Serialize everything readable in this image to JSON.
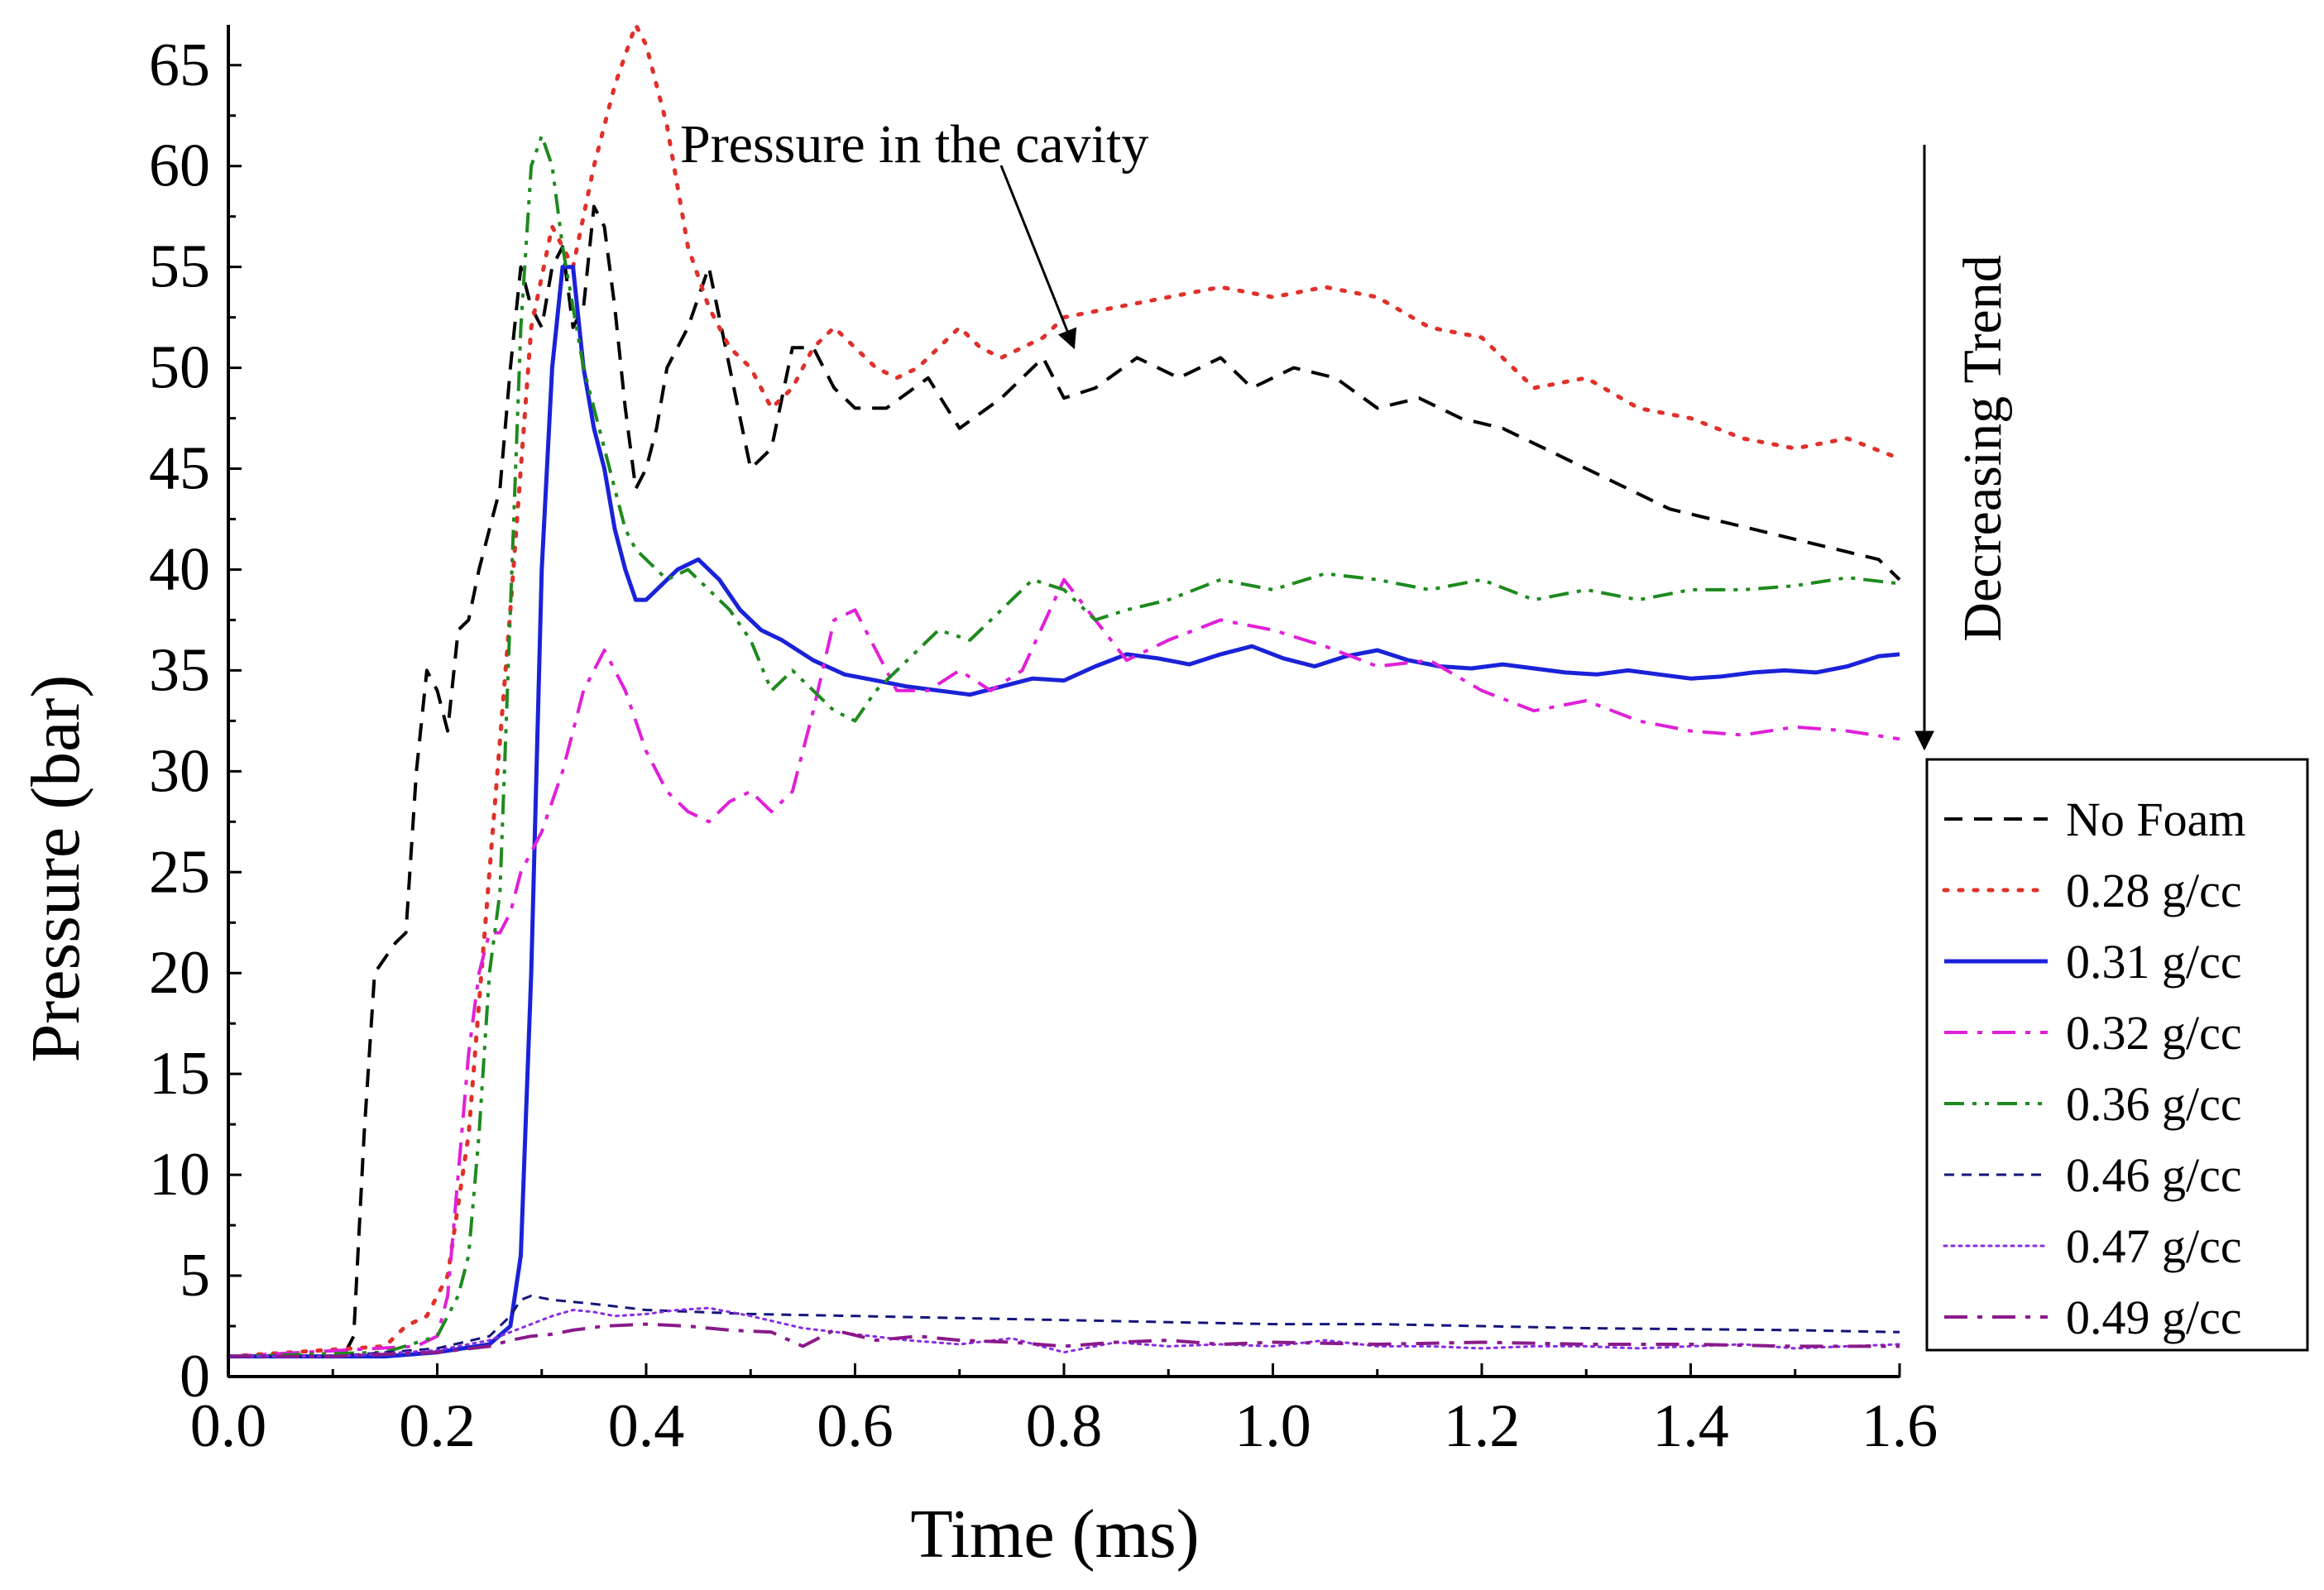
{
  "chart_data": {
    "type": "line",
    "title": "",
    "xlabel": "Time (ms)",
    "ylabel": "Pressure (bar)",
    "xlim": [
      0.0,
      1.6
    ],
    "ylim": [
      0,
      67
    ],
    "x_ticks": [
      "0.0",
      "0.2",
      "0.4",
      "0.6",
      "0.8",
      "1.0",
      "1.2",
      "1.4",
      "1.6"
    ],
    "x_tick_values": [
      0.0,
      0.2,
      0.4,
      0.6,
      0.8,
      1.0,
      1.2,
      1.4,
      1.6
    ],
    "y_ticks": [
      "0",
      "5",
      "10",
      "15",
      "20",
      "25",
      "30",
      "35",
      "40",
      "45",
      "50",
      "55",
      "60",
      "65"
    ],
    "y_tick_values": [
      0,
      5,
      10,
      15,
      20,
      25,
      30,
      35,
      40,
      45,
      50,
      55,
      60,
      65
    ],
    "grid": false,
    "legend_position": "right",
    "annotations": {
      "cavity_label": "Pressure in the cavity",
      "trend_label": "Decreasing Trend"
    },
    "series": [
      {
        "name": "No Foam",
        "color": "#000000",
        "style": "dash",
        "x": [
          0,
          0.11,
          0.12,
          0.13,
          0.14,
          0.16,
          0.17,
          0.18,
          0.19,
          0.2,
          0.21,
          0.22,
          0.23,
          0.24,
          0.25,
          0.26,
          0.27,
          0.28,
          0.29,
          0.3,
          0.31,
          0.32,
          0.33,
          0.34,
          0.35,
          0.36,
          0.37,
          0.38,
          0.39,
          0.4,
          0.41,
          0.42,
          0.44,
          0.46,
          0.48,
          0.5,
          0.52,
          0.54,
          0.56,
          0.58,
          0.6,
          0.63,
          0.67,
          0.7,
          0.74,
          0.78,
          0.8,
          0.83,
          0.87,
          0.91,
          0.95,
          0.98,
          1.02,
          1.06,
          1.1,
          1.14,
          1.18,
          1.22,
          1.26,
          1.3,
          1.34,
          1.38,
          1.42,
          1.46,
          1.5,
          1.54,
          1.58,
          1.6
        ],
        "y": [
          1,
          1,
          2,
          12,
          20,
          21.5,
          22,
          30,
          35,
          34,
          32,
          37,
          37.5,
          40,
          42,
          44,
          50,
          55,
          53,
          52,
          55,
          56,
          52,
          53,
          58,
          57,
          53,
          48,
          44,
          45,
          47,
          50,
          52,
          55,
          50,
          45,
          46,
          51,
          51,
          49,
          48,
          48,
          49.5,
          47,
          48.5,
          50.5,
          48.5,
          49,
          50.5,
          49.5,
          50.5,
          49,
          50,
          49.5,
          48,
          48.5,
          47.5,
          47,
          46,
          45,
          44,
          43,
          42.5,
          42,
          41.5,
          41,
          40.5,
          39.5
        ]
      },
      {
        "name": "0.28 g/cc",
        "color": "#e0302a",
        "style": "dot",
        "x": [
          0,
          0.15,
          0.17,
          0.19,
          0.21,
          0.23,
          0.25,
          0.27,
          0.29,
          0.31,
          0.33,
          0.35,
          0.37,
          0.39,
          0.4,
          0.42,
          0.44,
          0.46,
          0.48,
          0.5,
          0.52,
          0.54,
          0.56,
          0.58,
          0.6,
          0.62,
          0.64,
          0.66,
          0.68,
          0.7,
          0.72,
          0.74,
          0.76,
          0.78,
          0.8,
          0.85,
          0.9,
          0.95,
          1.0,
          1.05,
          1.1,
          1.15,
          1.2,
          1.25,
          1.3,
          1.35,
          1.4,
          1.45,
          1.5,
          1.55,
          1.6
        ],
        "y": [
          1,
          1.5,
          2.5,
          3,
          5,
          12,
          25,
          38,
          52,
          57,
          55,
          60,
          64,
          67,
          66,
          62,
          56,
          53,
          51,
          50,
          48,
          49,
          51,
          52,
          51,
          50,
          49.5,
          50,
          51,
          52,
          51,
          50.5,
          51,
          51.5,
          52.5,
          53,
          53.5,
          54,
          53.5,
          54,
          53.5,
          52,
          51.5,
          49,
          49.5,
          48,
          47.5,
          46.5,
          46,
          46.5,
          45.5
        ]
      },
      {
        "name": "0.31 g/cc",
        "color": "#1a22d8",
        "style": "solid",
        "x": [
          0,
          0.15,
          0.2,
          0.25,
          0.27,
          0.28,
          0.29,
          0.3,
          0.31,
          0.32,
          0.33,
          0.34,
          0.35,
          0.36,
          0.37,
          0.38,
          0.39,
          0.4,
          0.41,
          0.43,
          0.45,
          0.47,
          0.49,
          0.51,
          0.53,
          0.56,
          0.59,
          0.62,
          0.65,
          0.68,
          0.71,
          0.74,
          0.77,
          0.8,
          0.83,
          0.86,
          0.89,
          0.92,
          0.95,
          0.98,
          1.01,
          1.04,
          1.07,
          1.1,
          1.13,
          1.16,
          1.19,
          1.22,
          1.25,
          1.28,
          1.31,
          1.34,
          1.37,
          1.4,
          1.43,
          1.46,
          1.49,
          1.52,
          1.55,
          1.58,
          1.6
        ],
        "y": [
          1,
          1,
          1.2,
          1.6,
          2.5,
          6,
          20,
          40,
          50,
          55,
          55,
          50,
          47,
          45,
          42,
          40,
          38.5,
          38.5,
          39,
          40,
          40.5,
          39.5,
          38,
          37,
          36.5,
          35.5,
          34.8,
          34.5,
          34.2,
          34,
          33.8,
          34.2,
          34.6,
          34.5,
          35.2,
          35.8,
          35.6,
          35.3,
          35.8,
          36.2,
          35.6,
          35.2,
          35.7,
          36,
          35.5,
          35.2,
          35.1,
          35.3,
          35.1,
          34.9,
          34.8,
          35,
          34.8,
          34.6,
          34.7,
          34.9,
          35,
          34.9,
          35.2,
          35.7,
          35.8
        ]
      },
      {
        "name": "0.32 g/cc",
        "color": "#e020d8",
        "style": "dashdot",
        "x": [
          0,
          0.18,
          0.2,
          0.21,
          0.22,
          0.23,
          0.24,
          0.25,
          0.26,
          0.27,
          0.28,
          0.29,
          0.3,
          0.32,
          0.34,
          0.36,
          0.38,
          0.4,
          0.42,
          0.44,
          0.46,
          0.48,
          0.5,
          0.52,
          0.54,
          0.56,
          0.58,
          0.6,
          0.62,
          0.64,
          0.67,
          0.7,
          0.73,
          0.76,
          0.8,
          0.83,
          0.86,
          0.9,
          0.95,
          1.0,
          1.05,
          1.1,
          1.15,
          1.2,
          1.25,
          1.3,
          1.35,
          1.4,
          1.45,
          1.5,
          1.55,
          1.6
        ],
        "y": [
          1,
          1.5,
          2,
          4,
          10,
          16,
          20,
          22,
          22,
          23,
          25,
          26,
          27,
          30,
          34,
          36,
          34,
          31,
          29,
          28,
          27.5,
          28.5,
          29,
          28,
          29,
          33,
          37.5,
          38,
          36,
          34,
          34,
          35,
          34,
          35,
          39.5,
          37.5,
          35.5,
          36.5,
          37.5,
          37,
          36.2,
          35.2,
          35.5,
          34,
          33,
          33.5,
          32.5,
          32,
          31.8,
          32.2,
          32,
          31.6
        ]
      },
      {
        "name": "0.36 g/cc",
        "color": "#1e8a1e",
        "style": "dashdotdot",
        "x": [
          0,
          0.15,
          0.2,
          0.21,
          0.22,
          0.23,
          0.24,
          0.25,
          0.26,
          0.27,
          0.28,
          0.29,
          0.3,
          0.31,
          0.32,
          0.33,
          0.34,
          0.35,
          0.36,
          0.37,
          0.38,
          0.39,
          0.4,
          0.42,
          0.44,
          0.46,
          0.48,
          0.5,
          0.52,
          0.54,
          0.56,
          0.58,
          0.6,
          0.62,
          0.65,
          0.68,
          0.71,
          0.74,
          0.77,
          0.8,
          0.83,
          0.86,
          0.9,
          0.95,
          1.0,
          1.05,
          1.1,
          1.15,
          1.2,
          1.25,
          1.3,
          1.35,
          1.4,
          1.45,
          1.5,
          1.55,
          1.6
        ],
        "y": [
          1,
          1.2,
          2,
          3,
          4,
          6,
          12,
          20,
          24,
          38,
          52,
          60,
          61.5,
          60,
          56,
          53,
          50,
          48,
          46,
          44,
          42,
          41,
          40.5,
          39.5,
          40,
          39,
          38,
          36.5,
          34,
          35,
          34,
          33,
          32.5,
          34,
          35.5,
          37,
          36.5,
          38,
          39.5,
          39,
          37.5,
          38,
          38.5,
          39.5,
          39,
          39.8,
          39.5,
          39,
          39.5,
          38.5,
          39,
          38.5,
          39,
          39,
          39.2,
          39.6,
          39.3
        ]
      },
      {
        "name": "0.46 g/cc",
        "color": "#14147a",
        "style": "shortdash",
        "x": [
          0,
          0.1,
          0.2,
          0.25,
          0.27,
          0.28,
          0.29,
          0.31,
          0.35,
          0.4,
          0.5,
          0.6,
          0.7,
          0.8,
          0.9,
          1.0,
          1.1,
          1.2,
          1.3,
          1.4,
          1.5,
          1.6
        ],
        "y": [
          1,
          1,
          1.4,
          2,
          3,
          3.8,
          4,
          3.8,
          3.6,
          3.3,
          3.1,
          3,
          2.9,
          2.8,
          2.7,
          2.6,
          2.6,
          2.5,
          2.4,
          2.35,
          2.3,
          2.2
        ]
      },
      {
        "name": "0.47 g/cc",
        "color": "#8a2be2",
        "style": "fine",
        "x": [
          0,
          0.1,
          0.2,
          0.25,
          0.27,
          0.29,
          0.31,
          0.33,
          0.35,
          0.37,
          0.4,
          0.43,
          0.46,
          0.5,
          0.55,
          0.6,
          0.65,
          0.7,
          0.75,
          0.8,
          0.85,
          0.9,
          0.95,
          1.0,
          1.05,
          1.1,
          1.15,
          1.2,
          1.25,
          1.3,
          1.35,
          1.4,
          1.45,
          1.5,
          1.55,
          1.6
        ],
        "y": [
          1,
          1,
          1.3,
          1.8,
          2.2,
          2.6,
          3,
          3.3,
          3.2,
          3,
          3.1,
          3.3,
          3.4,
          3,
          2.4,
          2.1,
          1.8,
          1.6,
          1.9,
          1.2,
          1.7,
          1.5,
          1.6,
          1.5,
          1.8,
          1.5,
          1.5,
          1.4,
          1.5,
          1.5,
          1.4,
          1.5,
          1.6,
          1.4,
          1.5,
          1.6
        ]
      },
      {
        "name": "0.49 g/cc",
        "color": "#8a1a8a",
        "style": "dashdot",
        "x": [
          0,
          0.1,
          0.2,
          0.25,
          0.27,
          0.29,
          0.31,
          0.33,
          0.36,
          0.4,
          0.44,
          0.48,
          0.52,
          0.55,
          0.58,
          0.62,
          0.66,
          0.7,
          0.75,
          0.8,
          0.85,
          0.9,
          0.95,
          1.0,
          1.1,
          1.2,
          1.3,
          1.4,
          1.5,
          1.6
        ],
        "y": [
          1,
          1,
          1.2,
          1.5,
          1.8,
          2,
          2.1,
          2.3,
          2.5,
          2.6,
          2.5,
          2.3,
          2.2,
          1.5,
          2.3,
          1.8,
          2,
          1.8,
          1.7,
          1.5,
          1.7,
          1.8,
          1.6,
          1.7,
          1.6,
          1.7,
          1.6,
          1.6,
          1.5,
          1.5
        ]
      }
    ]
  }
}
